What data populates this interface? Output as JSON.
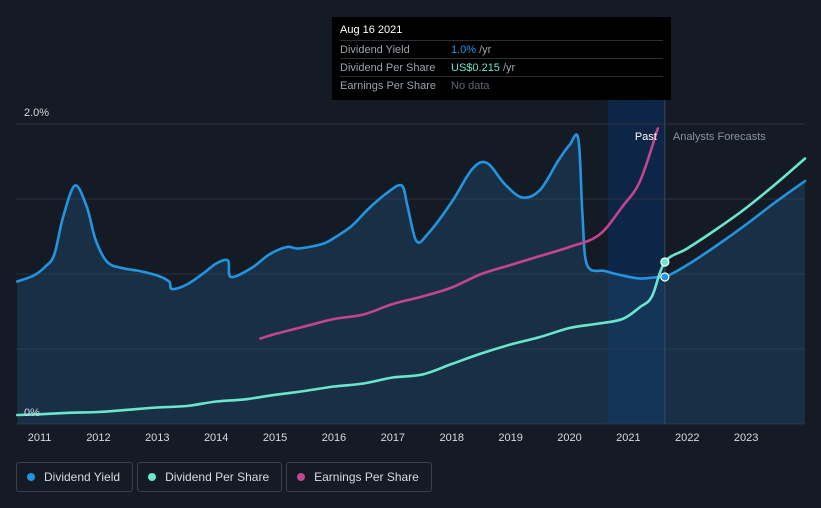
{
  "tooltip": {
    "date": "Aug 16 2021",
    "rows": [
      {
        "label": "Dividend Yield",
        "value": "1.0%",
        "unit": "/yr"
      },
      {
        "label": "Dividend Per Share",
        "value": "US$0.215",
        "unit": "/yr"
      },
      {
        "label": "Earnings Per Share",
        "value": "No data"
      }
    ]
  },
  "legend": [
    {
      "label": "Dividend Yield",
      "color": "#2394df"
    },
    {
      "label": "Dividend Per Share",
      "color": "#6ae6cf"
    },
    {
      "label": "Earnings Per Share",
      "color": "#c4458f"
    }
  ],
  "chart_data": {
    "type": "line",
    "y_tick_labels": [
      "2.0%",
      "0%"
    ],
    "ylim": [
      0,
      2.0
    ],
    "xlim": [
      2010.6,
      2024.0
    ],
    "x_ticks": [
      2011,
      2012,
      2013,
      2014,
      2015,
      2016,
      2017,
      2018,
      2019,
      2020,
      2021,
      2022,
      2023
    ],
    "past_label": "Past",
    "forecast_label": "Analysts Forecasts",
    "past_end": 2021.62,
    "highlight_start": 2020.65,
    "grid": true,
    "series": [
      {
        "name": "Dividend Yield",
        "color": "#2394df",
        "fill": true,
        "points": [
          [
            2010.62,
            0.95
          ],
          [
            2010.9,
            0.99
          ],
          [
            2011.1,
            1.05
          ],
          [
            2011.25,
            1.13
          ],
          [
            2011.4,
            1.38
          ],
          [
            2011.6,
            1.59
          ],
          [
            2011.8,
            1.45
          ],
          [
            2011.95,
            1.23
          ],
          [
            2012.15,
            1.08
          ],
          [
            2012.4,
            1.04
          ],
          [
            2012.7,
            1.02
          ],
          [
            2013.0,
            0.99
          ],
          [
            2013.2,
            0.95
          ],
          [
            2013.25,
            0.9
          ],
          [
            2013.5,
            0.93
          ],
          [
            2013.8,
            1.01
          ],
          [
            2014.0,
            1.07
          ],
          [
            2014.2,
            1.09
          ],
          [
            2014.25,
            0.98
          ],
          [
            2014.6,
            1.04
          ],
          [
            2014.9,
            1.13
          ],
          [
            2015.2,
            1.18
          ],
          [
            2015.4,
            1.17
          ],
          [
            2015.8,
            1.2
          ],
          [
            2016.0,
            1.24
          ],
          [
            2016.3,
            1.32
          ],
          [
            2016.6,
            1.44
          ],
          [
            2016.9,
            1.54
          ],
          [
            2017.15,
            1.59
          ],
          [
            2017.25,
            1.45
          ],
          [
            2017.4,
            1.22
          ],
          [
            2017.6,
            1.27
          ],
          [
            2018.0,
            1.48
          ],
          [
            2018.35,
            1.7
          ],
          [
            2018.6,
            1.74
          ],
          [
            2018.9,
            1.6
          ],
          [
            2019.2,
            1.51
          ],
          [
            2019.5,
            1.56
          ],
          [
            2019.8,
            1.75
          ],
          [
            2020.0,
            1.86
          ],
          [
            2020.15,
            1.9
          ],
          [
            2020.22,
            1.4
          ],
          [
            2020.3,
            1.06
          ],
          [
            2020.6,
            1.02
          ],
          [
            2020.9,
            0.99
          ],
          [
            2021.2,
            0.97
          ],
          [
            2021.5,
            0.98
          ],
          [
            2021.62,
            0.98
          ],
          [
            2022.0,
            1.06
          ],
          [
            2022.5,
            1.19
          ],
          [
            2023.0,
            1.33
          ],
          [
            2023.5,
            1.48
          ],
          [
            2024.0,
            1.62
          ]
        ]
      },
      {
        "name": "Dividend Per Share",
        "color": "#6ae6cf",
        "fill": false,
        "points": [
          [
            2010.62,
            0.06
          ],
          [
            2011.0,
            0.065
          ],
          [
            2011.5,
            0.075
          ],
          [
            2012.0,
            0.08
          ],
          [
            2012.5,
            0.095
          ],
          [
            2013.0,
            0.11
          ],
          [
            2013.5,
            0.12
          ],
          [
            2014.0,
            0.15
          ],
          [
            2014.5,
            0.165
          ],
          [
            2015.0,
            0.195
          ],
          [
            2015.5,
            0.22
          ],
          [
            2016.0,
            0.25
          ],
          [
            2016.5,
            0.27
          ],
          [
            2017.0,
            0.31
          ],
          [
            2017.5,
            0.33
          ],
          [
            2018.0,
            0.4
          ],
          [
            2018.5,
            0.47
          ],
          [
            2019.0,
            0.53
          ],
          [
            2019.5,
            0.58
          ],
          [
            2020.0,
            0.64
          ],
          [
            2020.5,
            0.67
          ],
          [
            2020.9,
            0.7
          ],
          [
            2021.2,
            0.78
          ],
          [
            2021.4,
            0.85
          ],
          [
            2021.62,
            1.08
          ],
          [
            2022.0,
            1.17
          ],
          [
            2022.5,
            1.3
          ],
          [
            2023.0,
            1.44
          ],
          [
            2023.5,
            1.6
          ],
          [
            2024.0,
            1.77
          ]
        ]
      },
      {
        "name": "Earnings Per Share",
        "color": "#c4458f",
        "fill": false,
        "points": [
          [
            2014.75,
            0.57
          ],
          [
            2015.0,
            0.6
          ],
          [
            2015.5,
            0.65
          ],
          [
            2016.0,
            0.7
          ],
          [
            2016.5,
            0.73
          ],
          [
            2017.0,
            0.8
          ],
          [
            2017.5,
            0.85
          ],
          [
            2018.0,
            0.91
          ],
          [
            2018.5,
            1.0
          ],
          [
            2019.0,
            1.06
          ],
          [
            2019.5,
            1.12
          ],
          [
            2020.0,
            1.18
          ],
          [
            2020.5,
            1.26
          ],
          [
            2020.9,
            1.45
          ],
          [
            2021.2,
            1.62
          ],
          [
            2021.5,
            1.97
          ]
        ]
      }
    ],
    "markers": [
      {
        "series": "Dividend Yield",
        "x": 2021.62,
        "y": 0.98
      },
      {
        "series": "Dividend Per Share",
        "x": 2021.62,
        "y": 1.08
      }
    ]
  }
}
